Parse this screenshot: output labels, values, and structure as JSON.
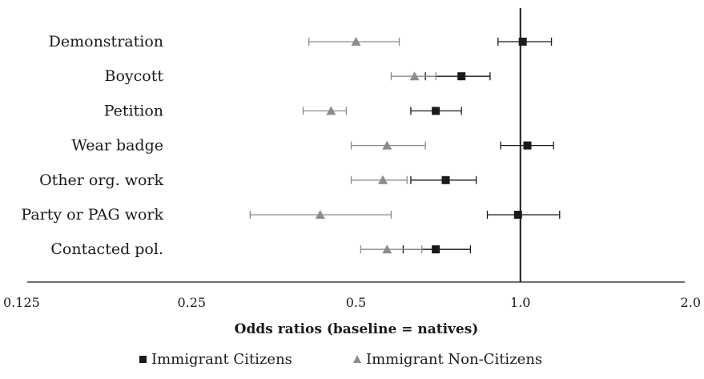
{
  "chart_data": {
    "type": "scatter",
    "subtype": "forest-plot-horizontal-error-bars",
    "title": "",
    "xlabel": "Odds ratios (baseline = natives)",
    "ylabel": "",
    "x_scale": "log2",
    "xlim": [
      0.125,
      2.0
    ],
    "x_ticks": [
      {
        "value": 0.125,
        "label": "0.125"
      },
      {
        "value": 0.25,
        "label": "0.25"
      },
      {
        "value": 0.5,
        "label": "0.5"
      },
      {
        "value": 1.0,
        "label": "1.0"
      },
      {
        "value": 2.0,
        "label": "2.0"
      }
    ],
    "reference_line": 1.0,
    "grid": false,
    "legend_position": "bottom",
    "categories": [
      "Demonstration",
      "Boycott",
      "Petition",
      "Wear badge",
      "Other org. work",
      "Party or PAG work",
      "Contacted pol."
    ],
    "series": [
      {
        "name": "Immigrant Citizens",
        "marker": "square",
        "color": "#1a1a1a",
        "values": [
          1.01,
          0.78,
          0.7,
          1.03,
          0.73,
          0.99,
          0.7
        ],
        "ci_low": [
          0.91,
          0.67,
          0.63,
          0.92,
          0.63,
          0.87,
          0.61
        ],
        "ci_high": [
          1.14,
          0.88,
          0.78,
          1.15,
          0.83,
          1.18,
          0.81
        ]
      },
      {
        "name": "Immigrant Non-Citizens",
        "marker": "triangle",
        "color": "#8c8c8c",
        "values": [
          0.5,
          0.64,
          0.45,
          0.57,
          0.56,
          0.43,
          0.57
        ],
        "ci_low": [
          0.41,
          0.58,
          0.4,
          0.49,
          0.49,
          0.32,
          0.51
        ],
        "ci_high": [
          0.6,
          0.7,
          0.48,
          0.67,
          0.62,
          0.58,
          0.66
        ]
      }
    ]
  }
}
